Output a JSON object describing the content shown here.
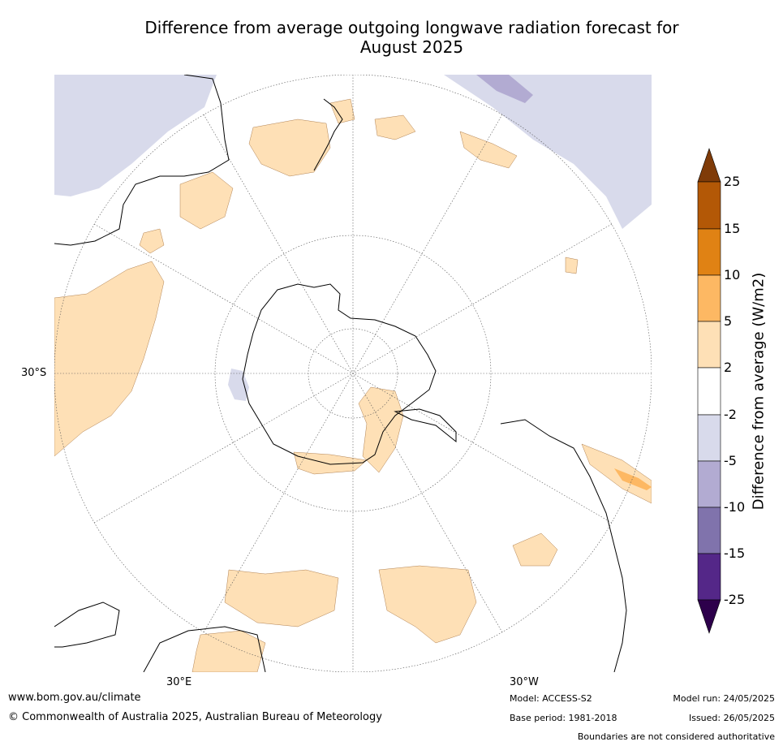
{
  "title": {
    "line1": "Difference from average outgoing longwave radiation forecast for",
    "line2": "August 2025"
  },
  "map": {
    "latitude_label": "30°S",
    "longitude_label_east": "30°E",
    "longitude_label_west": "30°W"
  },
  "colorbar": {
    "label": "Difference from average (W/m2)",
    "ticks": [
      "25",
      "15",
      "10",
      "5",
      "2",
      "-2",
      "-5",
      "-10",
      "-15",
      "-25"
    ],
    "colors": {
      "above_25": "#7f3b08",
      "15_25": "#b35806",
      "10_15": "#e08214",
      "5_10": "#fdb863",
      "2_5": "#fee0b6",
      "neutral": "#ffffff",
      "m2_m5": "#d8daeb",
      "m5_m10": "#b2abd2",
      "m10_m15": "#8073ac",
      "m15_m25": "#542788",
      "below_m25": "#2d004b"
    }
  },
  "footer": {
    "url": "www.bom.gov.au/climate",
    "copyright": "© Commonwealth of Australia 2025, Australian Bureau of Meteorology",
    "model": "Model: ACCESS-S2",
    "base_period": "Base period: 1981-2018",
    "model_run": "Model run: 24/05/2025",
    "issued": "Issued: 26/05/2025",
    "disclaimer": "Boundaries are not considered authoritative"
  }
}
